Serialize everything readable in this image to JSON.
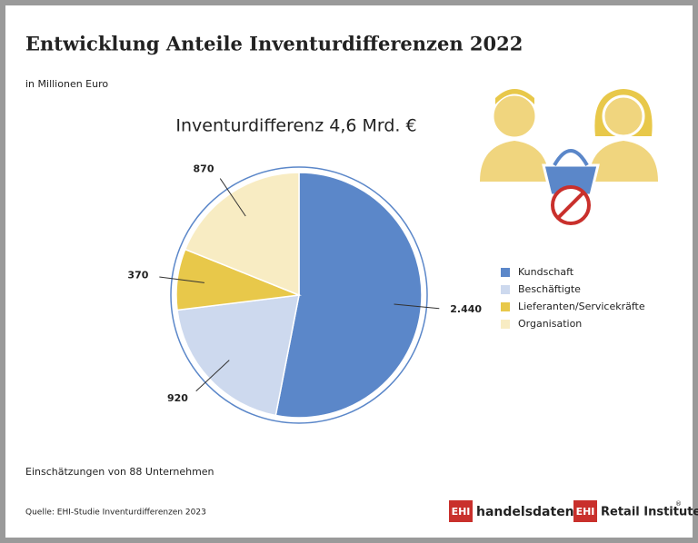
{
  "chart_data": {
    "type": "pie",
    "title": "Entwicklung Anteile Inventurdifferenzen 2022",
    "subtitle": "in Millionen Euro",
    "chart_title": "Inventurdifferenz 4,6 Mrd. €",
    "categories": [
      "Kundschaft",
      "Beschäftigte",
      "Lieferanten/Servicekräfte",
      "Organisation"
    ],
    "values": [
      2440,
      920,
      370,
      870
    ],
    "value_labels": [
      "2.440",
      "920",
      "370",
      "870"
    ],
    "colors": [
      "#5b87c9",
      "#cdd9ee",
      "#e8c84a",
      "#f8ecc3"
    ],
    "note": "Einschätzungen von 88 Unternehmen",
    "source": "Quelle: EHI-Studie Inventurdifferenzen 2023",
    "logos": [
      "EHI",
      "handelsdaten.de",
      "EHI",
      "Retail Institute"
    ],
    "registered": "®"
  }
}
